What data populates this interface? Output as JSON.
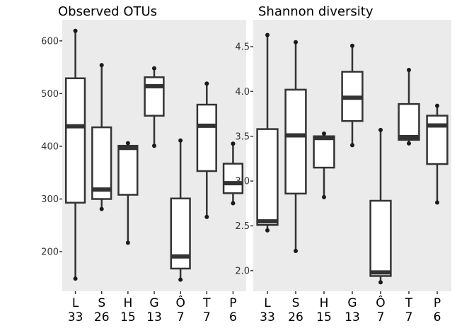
{
  "chart_data": [
    {
      "type": "box",
      "title": "Observed OTUs",
      "ylim": [
        125,
        640
      ],
      "yticks": [
        200,
        300,
        400,
        500,
        600
      ],
      "ytick_labels": [
        "200",
        "300",
        "400",
        "500",
        "600"
      ],
      "categories": [
        "L",
        "S",
        "H",
        "G",
        "Ô",
        "T",
        "P"
      ],
      "counts": [
        "33",
        "26",
        "15",
        "13",
        "7",
        "7",
        "6"
      ],
      "boxes": [
        {
          "min": 149,
          "q1": 293,
          "median": 438,
          "q3": 529,
          "max": 619
        },
        {
          "min": 281,
          "q1": 300,
          "median": 318,
          "q3": 436,
          "max": 554
        },
        {
          "min": 217,
          "q1": 308,
          "median": 397,
          "q3": 401,
          "max": 406
        },
        {
          "min": 401,
          "q1": 458,
          "median": 514,
          "q3": 531,
          "max": 548
        },
        {
          "min": 147,
          "q1": 168,
          "median": 191,
          "q3": 301,
          "max": 411
        },
        {
          "min": 266,
          "q1": 353,
          "median": 439,
          "q3": 479,
          "max": 519
        },
        {
          "min": 292,
          "q1": 311,
          "median": 330,
          "q3": 367,
          "max": 405
        }
      ],
      "outliers": [
        {
          "category": 0,
          "values": [
            149,
            619
          ]
        },
        {
          "category": 1,
          "values": [
            281,
            554
          ]
        },
        {
          "category": 2,
          "values": [
            217,
            406
          ]
        },
        {
          "category": 3,
          "values": [
            401,
            548
          ]
        },
        {
          "category": 4,
          "values": [
            147,
            411
          ]
        },
        {
          "category": 5,
          "values": [
            266,
            519
          ]
        },
        {
          "category": 6,
          "values": [
            292,
            405
          ]
        }
      ]
    },
    {
      "type": "box",
      "title": "Shannon diversity",
      "ylim": [
        1.77,
        4.8
      ],
      "yticks": [
        2.0,
        2.5,
        3.0,
        3.5,
        4.0,
        4.5
      ],
      "ytick_labels": [
        "2.0",
        "2.5",
        "3.0",
        "3.5",
        "4.0",
        "4.5"
      ],
      "categories": [
        "L",
        "S",
        "H",
        "G",
        "Ô",
        "T",
        "P"
      ],
      "counts": [
        "33",
        "26",
        "15",
        "13",
        "7",
        "7",
        "6"
      ],
      "boxes": [
        {
          "min": 2.45,
          "q1": 2.51,
          "median": 2.55,
          "q3": 3.58,
          "max": 4.63
        },
        {
          "min": 2.22,
          "q1": 2.86,
          "median": 3.51,
          "q3": 4.02,
          "max": 4.55
        },
        {
          "min": 2.82,
          "q1": 3.15,
          "median": 3.48,
          "q3": 3.5,
          "max": 3.53
        },
        {
          "min": 3.4,
          "q1": 3.67,
          "median": 3.93,
          "q3": 4.22,
          "max": 4.51
        },
        {
          "min": 1.87,
          "q1": 1.94,
          "median": 1.98,
          "q3": 2.78,
          "max": 3.57
        },
        {
          "min": 3.42,
          "q1": 3.46,
          "median": 3.49,
          "q3": 3.86,
          "max": 4.24
        },
        {
          "min": 2.76,
          "q1": 3.19,
          "median": 3.62,
          "q3": 3.73,
          "max": 3.84
        }
      ],
      "outliers": [
        {
          "category": 0,
          "values": [
            2.45,
            4.63
          ]
        },
        {
          "category": 1,
          "values": [
            2.22,
            4.55
          ]
        },
        {
          "category": 2,
          "values": [
            2.82,
            3.53
          ]
        },
        {
          "category": 3,
          "values": [
            3.4,
            4.51
          ]
        },
        {
          "category": 4,
          "values": [
            1.87,
            3.57
          ]
        },
        {
          "category": 5,
          "values": [
            3.42,
            4.24
          ]
        },
        {
          "category": 6,
          "values": [
            2.76,
            3.84
          ]
        }
      ]
    }
  ],
  "colors": {
    "panel_background": "#ebebeb",
    "box_fill": "#ffffff",
    "stroke": "#333333"
  }
}
